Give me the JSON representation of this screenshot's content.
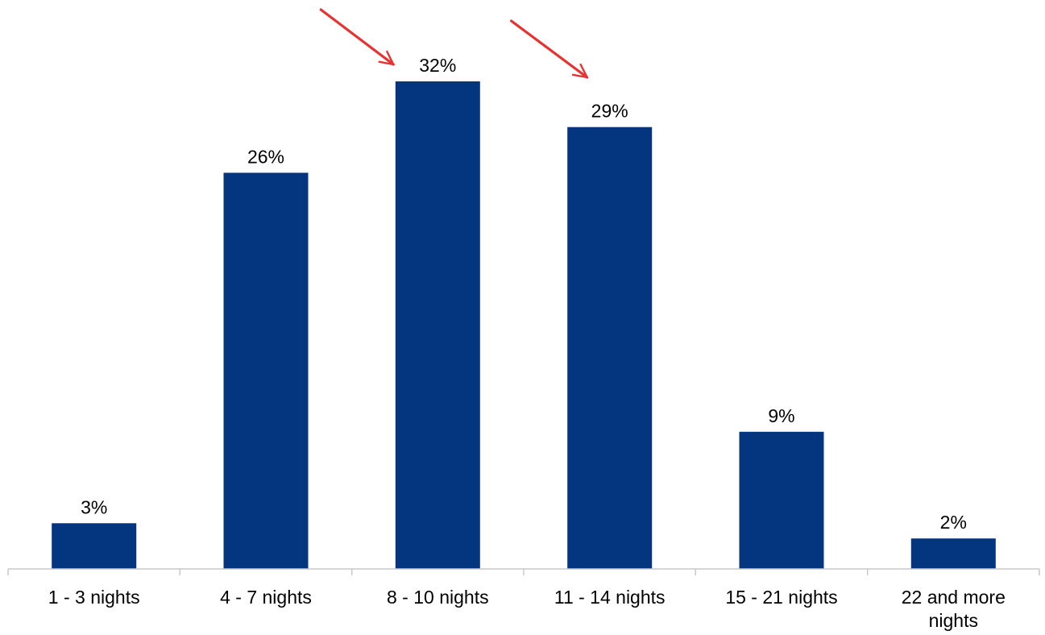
{
  "chart_data": {
    "type": "bar",
    "categories": [
      [
        "1 - 3 nights"
      ],
      [
        "4 - 7 nights"
      ],
      [
        "8 - 10 nights"
      ],
      [
        "11 - 14 nights"
      ],
      [
        "15 - 21 nights"
      ],
      [
        "22 and more",
        "nights"
      ]
    ],
    "values": [
      3,
      26,
      32,
      29,
      9,
      2
    ],
    "data_labels": [
      "3%",
      "26%",
      "32%",
      "29%",
      "9%",
      "2%"
    ],
    "unit": "%",
    "ylim": [
      0,
      32
    ],
    "grid": false,
    "bar_color": "#04357F",
    "axis_color": "#C8C8C8",
    "annotations": [
      {
        "type": "arrow",
        "color": "#E8322F",
        "points_to_category": "8 - 10 nights"
      },
      {
        "type": "arrow",
        "color": "#E8322F",
        "points_to_category": "11 - 14 nights"
      }
    ]
  }
}
